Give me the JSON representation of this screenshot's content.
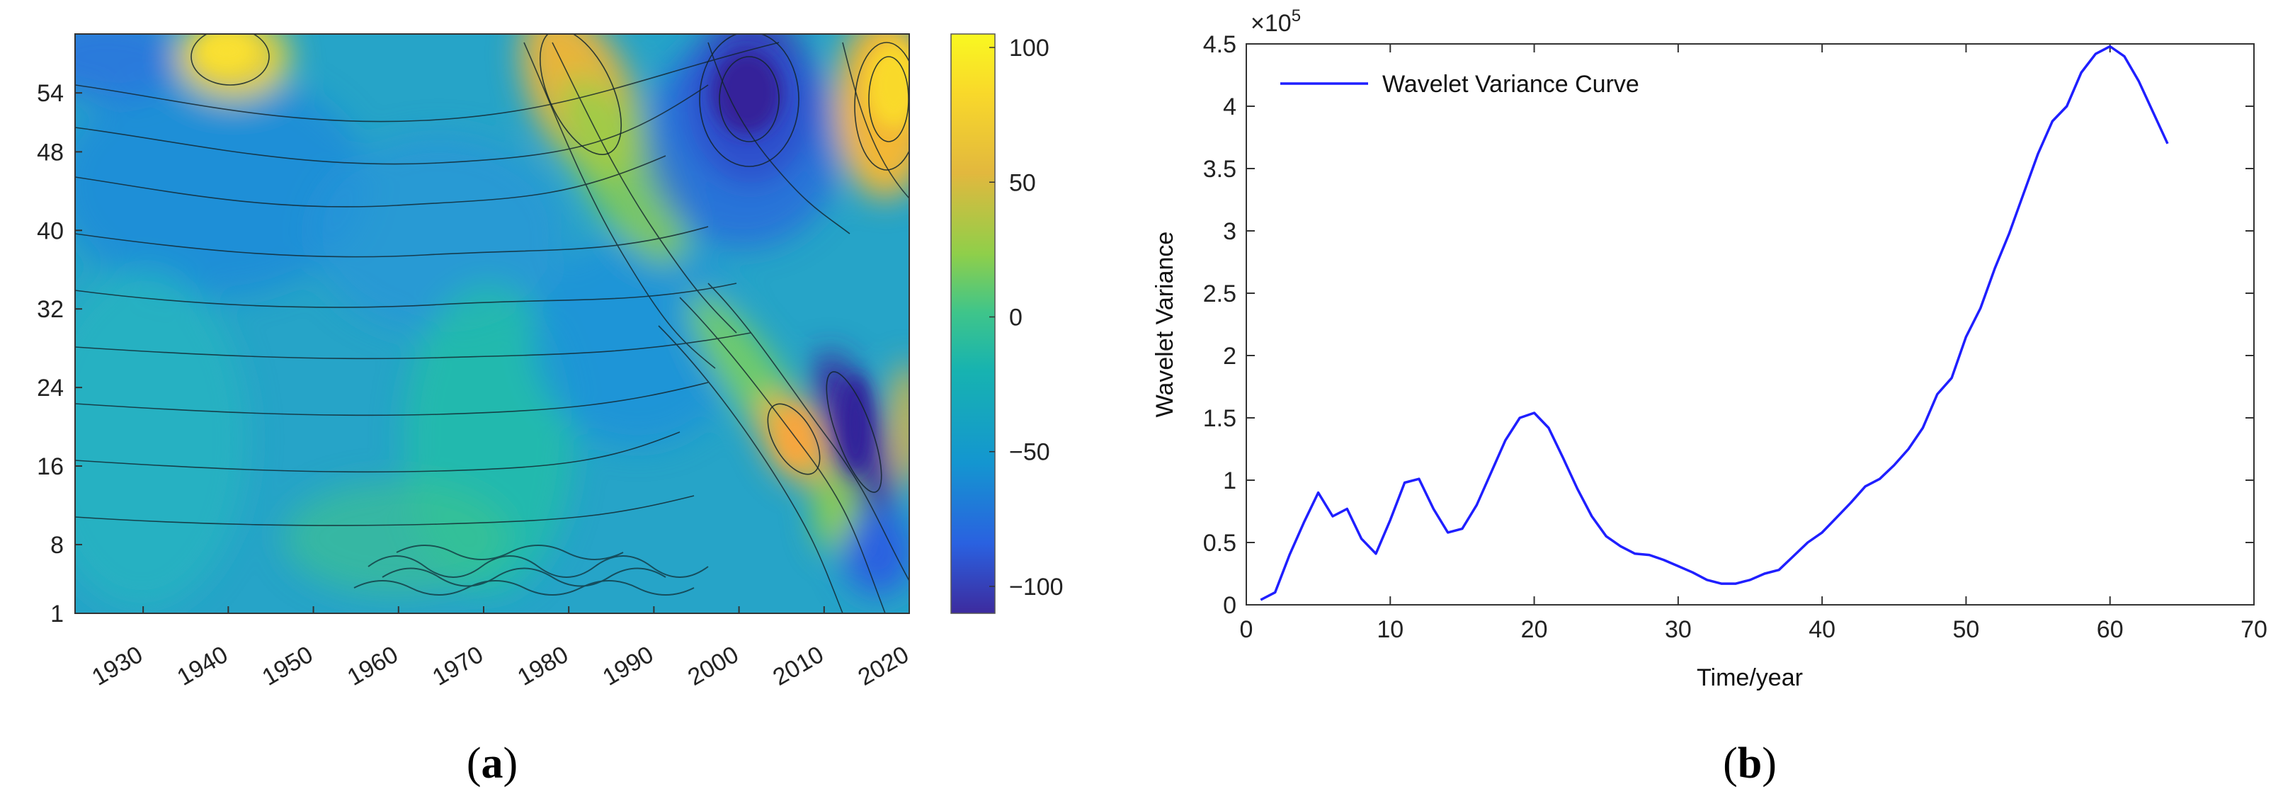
{
  "chart_data": [
    {
      "type": "heatmap",
      "panel_label": {
        "open": "(",
        "letter": "a",
        "close": ")"
      },
      "title": "",
      "xlabel": "",
      "ylabel": "",
      "x_ticks": [
        "1930",
        "1940",
        "1950",
        "1960",
        "1970",
        "1980",
        "1990",
        "2000",
        "2010",
        "2020"
      ],
      "xlim": [
        1922,
        2020
      ],
      "y_ticks": [
        "1",
        "8",
        "16",
        "24",
        "32",
        "40",
        "48",
        "54"
      ],
      "y_tick_values": [
        1,
        8,
        16,
        24,
        32,
        40,
        48,
        54
      ],
      "ylim": [
        1,
        60
      ],
      "colorbar": {
        "ticks": [
          "100",
          "50",
          "0",
          "−50",
          "−100"
        ],
        "tick_values": [
          100,
          50,
          0,
          -50,
          -100
        ],
        "range": [
          -110,
          105
        ],
        "colors": [
          "#3d2b9e",
          "#2a61e0",
          "#1496d0",
          "#17b3b0",
          "#3fc58a",
          "#8fcf4a",
          "#e2b83e",
          "#f9d92a",
          "#f9f821"
        ]
      },
      "features": [
        {
          "name": "positive-center-1940",
          "x": 1940,
          "y": 59,
          "value": 70
        },
        {
          "name": "positive-band-1980",
          "x": 1981,
          "y": 54,
          "value": 85
        },
        {
          "name": "negative-center-2000",
          "x": 2001,
          "y": 54,
          "value": -95
        },
        {
          "name": "positive-center-2018",
          "x": 2017,
          "y": 54,
          "value": 95
        },
        {
          "name": "positive-center-2007",
          "x": 2007,
          "y": 18,
          "value": 90
        },
        {
          "name": "negative-center-2014",
          "x": 2014,
          "y": 17,
          "value": -100
        }
      ]
    },
    {
      "type": "line",
      "panel_label": {
        "open": "(",
        "letter": "b",
        "close": ")"
      },
      "title": "",
      "xlabel": "Time/year",
      "ylabel": "Wavelet Variance",
      "xlim": [
        0,
        70
      ],
      "ylim": [
        0,
        4.5
      ],
      "y_multiplier": "×10",
      "y_multiplier_exp": "5",
      "x_ticks": [
        "0",
        "10",
        "20",
        "30",
        "40",
        "50",
        "60",
        "70"
      ],
      "y_ticks": [
        "0",
        "0.5",
        "1",
        "1.5",
        "2",
        "2.5",
        "3",
        "3.5",
        "4",
        "4.5"
      ],
      "series": [
        {
          "name": "Wavelet Variance Curve",
          "color": "#1f1fff",
          "x": [
            1,
            2,
            3,
            4,
            5,
            6,
            7,
            8,
            9,
            10,
            11,
            12,
            13,
            14,
            15,
            16,
            17,
            18,
            19,
            20,
            21,
            22,
            23,
            24,
            25,
            26,
            27,
            28,
            29,
            30,
            31,
            32,
            33,
            34,
            35,
            36,
            37,
            38,
            39,
            40,
            41,
            42,
            43,
            44,
            45,
            46,
            47,
            48,
            49,
            50,
            51,
            52,
            53,
            54,
            55,
            56,
            57,
            58,
            59,
            60,
            61,
            62,
            63,
            64
          ],
          "y": [
            0.04,
            0.1,
            0.4,
            0.66,
            0.9,
            0.71,
            0.77,
            0.53,
            0.41,
            0.68,
            0.98,
            1.01,
            0.77,
            0.58,
            0.61,
            0.8,
            1.06,
            1.32,
            1.5,
            1.54,
            1.42,
            1.18,
            0.93,
            0.71,
            0.55,
            0.47,
            0.41,
            0.4,
            0.36,
            0.31,
            0.26,
            0.2,
            0.17,
            0.17,
            0.2,
            0.25,
            0.28,
            0.39,
            0.5,
            0.58,
            0.7,
            0.82,
            0.95,
            1.01,
            1.12,
            1.25,
            1.42,
            1.69,
            1.82,
            2.15,
            2.38,
            2.7,
            2.98,
            3.3,
            3.62,
            3.88,
            4.0,
            4.27,
            4.42,
            4.48,
            4.4,
            4.2,
            3.95,
            3.7
          ]
        }
      ]
    }
  ]
}
